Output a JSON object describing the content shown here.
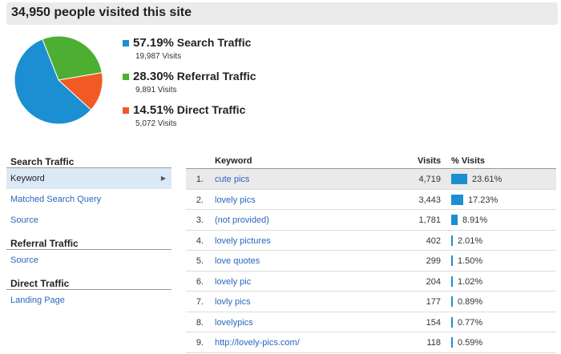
{
  "header": {
    "title": "34,950 people visited this site"
  },
  "colors": {
    "search": "#1b8fd1",
    "referral": "#4caf32",
    "direct": "#f15a22"
  },
  "summary": [
    {
      "pct": "57.19%",
      "label": "Search Traffic",
      "visits": "19,987 Visits",
      "fraction": 0.5719
    },
    {
      "pct": "28.30%",
      "label": "Referral Traffic",
      "visits": "9,891 Visits",
      "fraction": 0.283
    },
    {
      "pct": "14.51%",
      "label": "Direct Traffic",
      "visits": "5,072 Visits",
      "fraction": 0.1451
    }
  ],
  "sidebar": {
    "search_heading": "Search Traffic",
    "search_items": [
      "Keyword",
      "Matched Search Query",
      "Source"
    ],
    "referral_heading": "Referral Traffic",
    "referral_items": [
      "Source"
    ],
    "direct_heading": "Direct Traffic",
    "direct_items": [
      "Landing Page"
    ]
  },
  "table": {
    "headers": {
      "keyword": "Keyword",
      "visits": "Visits",
      "pct": "% Visits"
    },
    "rows": [
      {
        "num": "1.",
        "keyword": "cute pics",
        "visits": "4,719",
        "pct": "23.61%",
        "fraction": 0.2361
      },
      {
        "num": "2.",
        "keyword": "lovely pics",
        "visits": "3,443",
        "pct": "17.23%",
        "fraction": 0.1723
      },
      {
        "num": "3.",
        "keyword": "(not provided)",
        "visits": "1,781",
        "pct": "8.91%",
        "fraction": 0.0891
      },
      {
        "num": "4.",
        "keyword": "lovely pictures",
        "visits": "402",
        "pct": "2.01%",
        "fraction": 0.0201
      },
      {
        "num": "5.",
        "keyword": "love quotes",
        "visits": "299",
        "pct": "1.50%",
        "fraction": 0.015
      },
      {
        "num": "6.",
        "keyword": "lovely pic",
        "visits": "204",
        "pct": "1.02%",
        "fraction": 0.0102
      },
      {
        "num": "7.",
        "keyword": "lovly pics",
        "visits": "177",
        "pct": "0.89%",
        "fraction": 0.0089
      },
      {
        "num": "8.",
        "keyword": "lovelypics",
        "visits": "154",
        "pct": "0.77%",
        "fraction": 0.0077
      },
      {
        "num": "9.",
        "keyword": "http://lovely-pics.com/",
        "visits": "118",
        "pct": "0.59%",
        "fraction": 0.0059
      }
    ]
  }
}
